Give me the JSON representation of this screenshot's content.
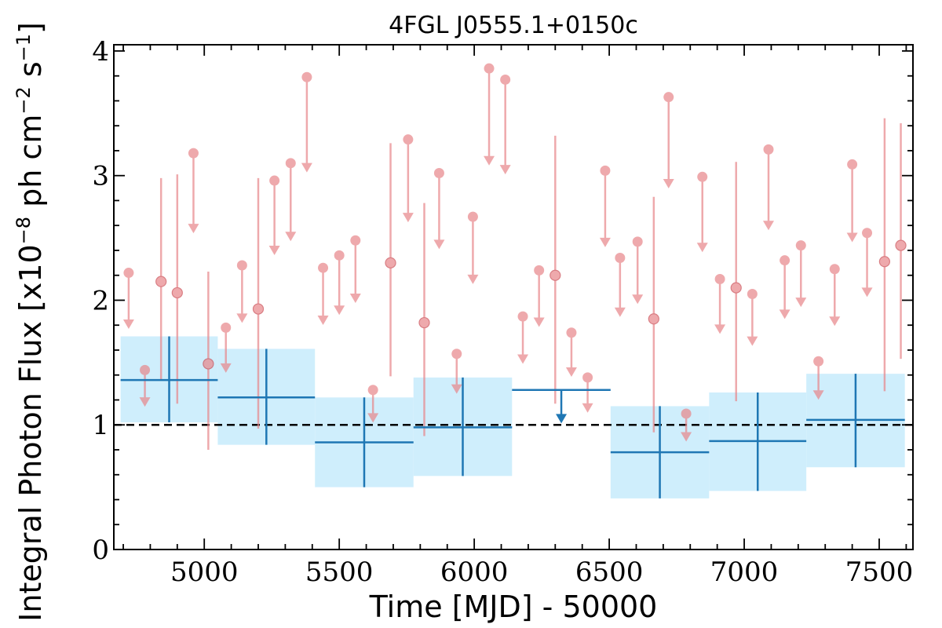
{
  "chart_data": {
    "type": "scatter",
    "title": "4FGL J0555.1+0150c",
    "xlabel": "Time [MJD] - 50000",
    "ylabel": "Integral Photon Flux [x10",
    "ylabel_sup1": "−8",
    "ylabel_mid": " ph cm",
    "ylabel_sup2": "−2",
    "ylabel_end": " s",
    "ylabel_sup3": "−1",
    "ylabel_close": "]",
    "xlim": [
      4665,
      7625
    ],
    "ylim": [
      0,
      4.05
    ],
    "x_ticks": [
      5000,
      5500,
      6000,
      6500,
      7000,
      7500
    ],
    "x_tick_labels": [
      "5000",
      "5500",
      "6000",
      "6500",
      "7000",
      "7500"
    ],
    "y_ticks": [
      0,
      1,
      2,
      3,
      4
    ],
    "y_tick_labels": [
      "0",
      "1",
      "2",
      "3",
      "4"
    ],
    "reference_level": 1.0,
    "colors": {
      "fine_bins": "#e8868a",
      "coarse_bins": "#1f77b4",
      "coarse_band": "#cfeefc",
      "reference_line": "#000000"
    },
    "coarse_bins": [
      {
        "x0": 4690,
        "x1": 5050,
        "y": 1.36,
        "lo": 1.02,
        "hi": 1.71
      },
      {
        "x0": 5050,
        "x1": 5410,
        "y": 1.22,
        "lo": 0.84,
        "hi": 1.61
      },
      {
        "x0": 5410,
        "x1": 5775,
        "y": 0.86,
        "lo": 0.5,
        "hi": 1.22
      },
      {
        "x0": 5775,
        "x1": 6140,
        "y": 0.98,
        "lo": 0.59,
        "hi": 1.38
      },
      {
        "x0": 6140,
        "x1": 6505,
        "y": 1.28,
        "upper_limit": true
      },
      {
        "x0": 6505,
        "x1": 6870,
        "y": 0.78,
        "lo": 0.41,
        "hi": 1.15
      },
      {
        "x0": 6870,
        "x1": 7230,
        "y": 0.87,
        "lo": 0.47,
        "hi": 1.26
      },
      {
        "x0": 7230,
        "x1": 7595,
        "y": 1.04,
        "lo": 0.66,
        "hi": 1.41
      }
    ],
    "fine_bins": [
      {
        "x": 4720,
        "y": 2.22,
        "ul": true
      },
      {
        "x": 4780,
        "y": 1.44,
        "ul": true
      },
      {
        "x": 4840,
        "y": 2.15,
        "lo": 1.36,
        "hi": 2.98
      },
      {
        "x": 4900,
        "y": 2.06,
        "lo": 1.17,
        "hi": 3.01
      },
      {
        "x": 4960,
        "y": 3.18,
        "ul": true
      },
      {
        "x": 5015,
        "y": 1.49,
        "lo": 0.8,
        "hi": 2.23
      },
      {
        "x": 5080,
        "y": 1.78,
        "ul": true
      },
      {
        "x": 5140,
        "y": 2.28,
        "ul": true
      },
      {
        "x": 5200,
        "y": 1.93,
        "lo": 0.97,
        "hi": 2.98
      },
      {
        "x": 5260,
        "y": 2.96,
        "ul": true
      },
      {
        "x": 5320,
        "y": 3.1,
        "ul": true
      },
      {
        "x": 5380,
        "y": 3.79,
        "ul": true
      },
      {
        "x": 5440,
        "y": 2.26,
        "ul": true
      },
      {
        "x": 5500,
        "y": 2.36,
        "ul": true
      },
      {
        "x": 5560,
        "y": 2.48,
        "ul": true
      },
      {
        "x": 5625,
        "y": 1.28,
        "ul": true
      },
      {
        "x": 5690,
        "y": 2.3,
        "lo": 1.39,
        "hi": 3.26
      },
      {
        "x": 5755,
        "y": 3.29,
        "ul": true
      },
      {
        "x": 5815,
        "y": 1.82,
        "lo": 0.91,
        "hi": 2.78
      },
      {
        "x": 5870,
        "y": 3.02,
        "ul": true
      },
      {
        "x": 5935,
        "y": 1.57,
        "ul": true
      },
      {
        "x": 5995,
        "y": 2.67,
        "ul": true
      },
      {
        "x": 6055,
        "y": 3.86,
        "ul": true
      },
      {
        "x": 6115,
        "y": 3.77,
        "ul": true
      },
      {
        "x": 6180,
        "y": 1.87,
        "ul": true
      },
      {
        "x": 6240,
        "y": 2.24,
        "ul": true
      },
      {
        "x": 6300,
        "y": 2.2,
        "lo": 1.17,
        "hi": 3.32
      },
      {
        "x": 6360,
        "y": 1.74,
        "ul": true
      },
      {
        "x": 6420,
        "y": 1.38,
        "ul": true
      },
      {
        "x": 6485,
        "y": 3.04,
        "ul": true
      },
      {
        "x": 6540,
        "y": 2.34,
        "ul": true
      },
      {
        "x": 6605,
        "y": 2.47,
        "ul": true
      },
      {
        "x": 6665,
        "y": 1.85,
        "lo": 0.94,
        "hi": 2.83
      },
      {
        "x": 6720,
        "y": 3.63,
        "ul": true
      },
      {
        "x": 6785,
        "y": 1.09,
        "ul": true
      },
      {
        "x": 6845,
        "y": 2.99,
        "ul": true
      },
      {
        "x": 6910,
        "y": 2.17,
        "ul": true
      },
      {
        "x": 6970,
        "y": 2.1,
        "lo": 1.19,
        "hi": 3.11
      },
      {
        "x": 7030,
        "y": 2.05,
        "ul": true
      },
      {
        "x": 7090,
        "y": 3.21,
        "ul": true
      },
      {
        "x": 7150,
        "y": 2.32,
        "ul": true
      },
      {
        "x": 7210,
        "y": 2.44,
        "ul": true
      },
      {
        "x": 7275,
        "y": 1.51,
        "ul": true
      },
      {
        "x": 7335,
        "y": 2.25,
        "ul": true
      },
      {
        "x": 7400,
        "y": 3.09,
        "ul": true
      },
      {
        "x": 7455,
        "y": 2.54,
        "ul": true
      },
      {
        "x": 7520,
        "y": 2.31,
        "lo": 1.27,
        "hi": 3.46
      },
      {
        "x": 7580,
        "y": 2.44,
        "lo": 1.53,
        "hi": 3.42
      }
    ]
  }
}
